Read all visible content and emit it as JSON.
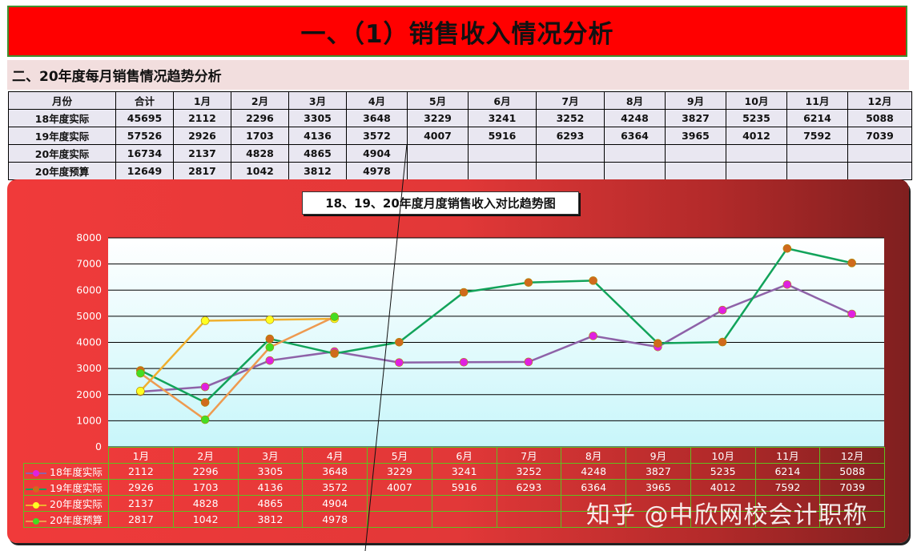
{
  "banner_title": "一、（1）销售收入情况分析",
  "section_title": "二、20年度每月销售情况趋势分析",
  "table": {
    "headers": [
      "月份",
      "合计",
      "1月",
      "2月",
      "3月",
      "4月",
      "5月",
      "6月",
      "7月",
      "8月",
      "9月",
      "10月",
      "11月",
      "12月"
    ],
    "rows": [
      {
        "label": "18年度实际",
        "total": "45695",
        "values": [
          "2112",
          "2296",
          "3305",
          "3648",
          "3229",
          "3241",
          "3252",
          "4248",
          "3827",
          "5235",
          "6214",
          "5088"
        ]
      },
      {
        "label": "19年度实际",
        "total": "57526",
        "values": [
          "2926",
          "1703",
          "4136",
          "3572",
          "4007",
          "5916",
          "6293",
          "6364",
          "3965",
          "4012",
          "7592",
          "7039"
        ]
      },
      {
        "label": "20年度实际",
        "total": "16734",
        "values": [
          "2137",
          "4828",
          "4865",
          "4904",
          "",
          "",
          "",
          "",
          "",
          "",
          "",
          ""
        ]
      },
      {
        "label": "20年度预算",
        "total": "12649",
        "values": [
          "2817",
          "1042",
          "3812",
          "4978",
          "",
          "",
          "",
          "",
          "",
          "",
          "",
          ""
        ]
      }
    ]
  },
  "watermark": "知乎 @中欣网校会计职称",
  "chart_data": {
    "type": "line",
    "title": "18、19、20年度月度销售收入对比趋势图",
    "categories": [
      "1月",
      "2月",
      "3月",
      "4月",
      "5月",
      "6月",
      "7月",
      "8月",
      "9月",
      "10月",
      "11月",
      "12月"
    ],
    "ylim": [
      0,
      8000
    ],
    "yticks": [
      0,
      1000,
      2000,
      3000,
      4000,
      5000,
      6000,
      7000,
      8000
    ],
    "grid": true,
    "legend_placement": "bottom (data table)",
    "series": [
      {
        "name": "18年度实际",
        "values": [
          2112,
          2296,
          3305,
          3648,
          3229,
          3241,
          3252,
          4248,
          3827,
          5235,
          6214,
          5088
        ],
        "line_color": "#8e62a8",
        "marker_color": "#e020e0"
      },
      {
        "name": "19年度实际",
        "values": [
          2926,
          1703,
          4136,
          3572,
          4007,
          5916,
          6293,
          6364,
          3965,
          4012,
          7592,
          7039
        ],
        "line_color": "#12a35a",
        "marker_color": "#d06a1c"
      },
      {
        "name": "20年度实际",
        "values": [
          2137,
          4828,
          4865,
          4904,
          null,
          null,
          null,
          null,
          null,
          null,
          null,
          null
        ],
        "line_color": "#f0b030",
        "marker_color": "#ffff22"
      },
      {
        "name": "20年度预算",
        "values": [
          2817,
          1042,
          3812,
          4978,
          null,
          null,
          null,
          null,
          null,
          null,
          null,
          null
        ],
        "line_color": "#ee9a50",
        "marker_color": "#44dd22"
      }
    ]
  }
}
